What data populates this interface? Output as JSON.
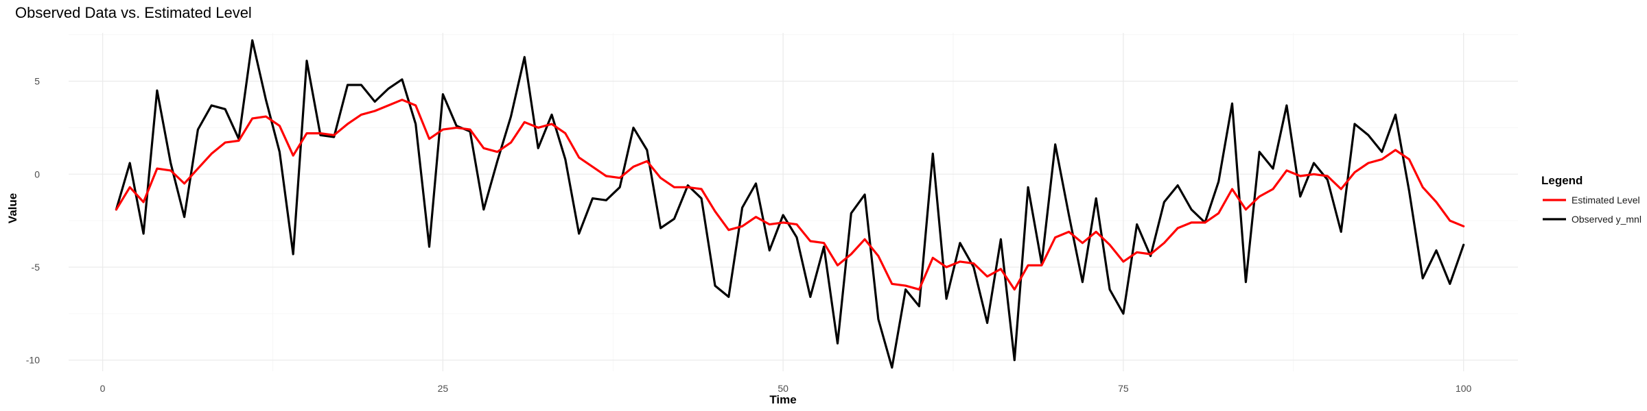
{
  "chart_data": {
    "type": "line",
    "title": "Observed Data vs. Estimated Level",
    "xlabel": "Time",
    "ylabel": "Value",
    "xlim": [
      -2.5,
      104
    ],
    "ylim": [
      -10.6,
      7.6
    ],
    "x_ticks": [
      0,
      25,
      50,
      75,
      100
    ],
    "y_ticks": [
      -10,
      -5,
      0,
      5
    ],
    "grid": true,
    "legend": {
      "title": "Legend",
      "position": "right"
    },
    "series": [
      {
        "name": "Estimated Level",
        "color": "#ff0000",
        "x": [
          1,
          2,
          3,
          4,
          5,
          6,
          7,
          8,
          9,
          10,
          11,
          12,
          13,
          14,
          15,
          16,
          17,
          18,
          19,
          20,
          21,
          22,
          23,
          24,
          25,
          26,
          27,
          28,
          29,
          30,
          31,
          32,
          33,
          34,
          35,
          36,
          37,
          38,
          39,
          40,
          41,
          42,
          43,
          44,
          45,
          46,
          47,
          48,
          49,
          50,
          51,
          52,
          53,
          54,
          55,
          56,
          57,
          58,
          59,
          60,
          61,
          62,
          63,
          64,
          65,
          66,
          67,
          68,
          69,
          70,
          71,
          72,
          73,
          74,
          75,
          76,
          77,
          78,
          79,
          80,
          81,
          82,
          83,
          84,
          85,
          86,
          87,
          88,
          89,
          90,
          91,
          92,
          93,
          94,
          95,
          96,
          97,
          98,
          99,
          100
        ],
        "values": [
          -1.9,
          -0.7,
          -1.5,
          0.3,
          0.2,
          -0.5,
          0.3,
          1.1,
          1.7,
          1.8,
          3.0,
          3.1,
          2.6,
          1.0,
          2.2,
          2.2,
          2.1,
          2.7,
          3.2,
          3.4,
          3.7,
          4.0,
          3.7,
          1.9,
          2.4,
          2.5,
          2.4,
          1.4,
          1.2,
          1.7,
          2.8,
          2.5,
          2.7,
          2.2,
          0.9,
          0.4,
          -0.1,
          -0.2,
          0.4,
          0.7,
          -0.2,
          -0.7,
          -0.7,
          -0.8,
          -2.0,
          -3.0,
          -2.8,
          -2.3,
          -2.7,
          -2.6,
          -2.7,
          -3.6,
          -3.7,
          -4.9,
          -4.3,
          -3.5,
          -4.4,
          -5.9,
          -6.0,
          -6.2,
          -4.5,
          -5.0,
          -4.7,
          -4.8,
          -5.5,
          -5.1,
          -6.2,
          -4.9,
          -4.9,
          -3.4,
          -3.1,
          -3.7,
          -3.1,
          -3.8,
          -4.7,
          -4.2,
          -4.3,
          -3.7,
          -2.9,
          -2.6,
          -2.6,
          -2.1,
          -0.8,
          -1.9,
          -1.2,
          -0.8,
          0.2,
          -0.1,
          0.0,
          -0.1,
          -0.8,
          0.1,
          0.6,
          0.8,
          1.3,
          0.8,
          -0.7,
          -1.5,
          -2.5,
          -2.8
        ]
      },
      {
        "name": "Observed y_mnl",
        "color": "#000000",
        "x": [
          1,
          2,
          3,
          4,
          5,
          6,
          7,
          8,
          9,
          10,
          11,
          12,
          13,
          14,
          15,
          16,
          17,
          18,
          19,
          20,
          21,
          22,
          23,
          24,
          25,
          26,
          27,
          28,
          29,
          30,
          31,
          32,
          33,
          34,
          35,
          36,
          37,
          38,
          39,
          40,
          41,
          42,
          43,
          44,
          45,
          46,
          47,
          48,
          49,
          50,
          51,
          52,
          53,
          54,
          55,
          56,
          57,
          58,
          59,
          60,
          61,
          62,
          63,
          64,
          65,
          66,
          67,
          68,
          69,
          70,
          71,
          72,
          73,
          74,
          75,
          76,
          77,
          78,
          79,
          80,
          81,
          82,
          83,
          84,
          85,
          86,
          87,
          88,
          89,
          90,
          91,
          92,
          93,
          94,
          95,
          96,
          97,
          98,
          99,
          100
        ],
        "values": [
          -1.9,
          0.6,
          -3.2,
          4.5,
          0.6,
          -2.3,
          2.4,
          3.7,
          3.5,
          1.9,
          7.2,
          4.0,
          1.2,
          -4.3,
          6.1,
          2.1,
          2.0,
          4.8,
          4.8,
          3.9,
          4.6,
          5.1,
          2.7,
          -3.9,
          4.3,
          2.6,
          2.3,
          -1.9,
          0.7,
          3.1,
          6.3,
          1.4,
          3.2,
          0.8,
          -3.2,
          -1.3,
          -1.4,
          -0.7,
          2.5,
          1.3,
          -2.9,
          -2.4,
          -0.6,
          -1.3,
          -6.0,
          -6.6,
          -1.8,
          -0.5,
          -4.1,
          -2.2,
          -3.4,
          -6.6,
          -3.9,
          -9.1,
          -2.1,
          -1.1,
          -7.8,
          -10.4,
          -6.2,
          -7.1,
          1.1,
          -6.7,
          -3.7,
          -5.0,
          -8.0,
          -3.5,
          -10.0,
          -0.7,
          -4.8,
          1.6,
          -2.2,
          -5.8,
          -1.3,
          -6.2,
          -7.5,
          -2.7,
          -4.4,
          -1.5,
          -0.6,
          -1.9,
          -2.6,
          -0.4,
          3.8,
          -5.8,
          1.2,
          0.3,
          3.7,
          -1.2,
          0.6,
          -0.3,
          -3.1,
          2.7,
          2.1,
          1.2,
          3.2,
          -0.9,
          -5.6,
          -4.1,
          -5.9,
          -3.8
        ]
      }
    ]
  }
}
